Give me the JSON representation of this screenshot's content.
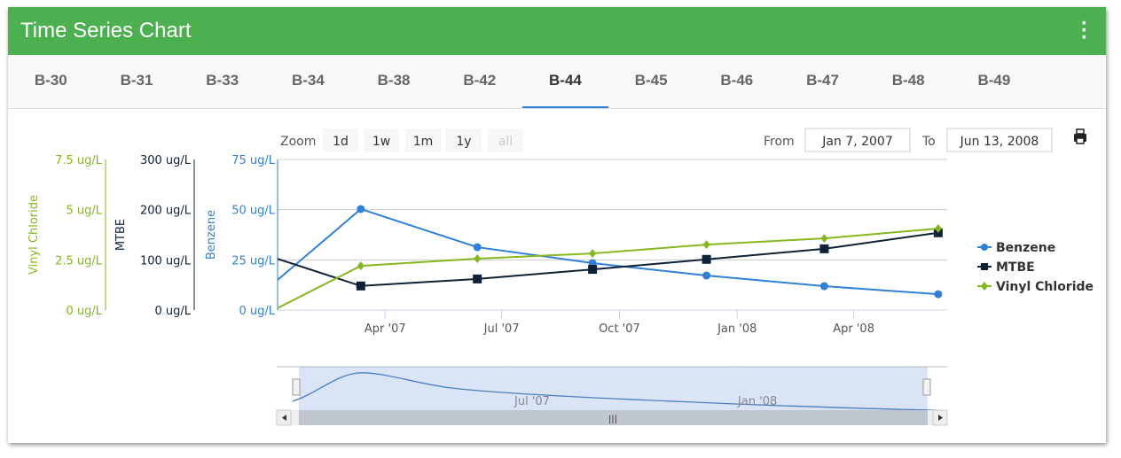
{
  "header": {
    "title": "Time Series Chart",
    "menu_icon": "kebab-icon"
  },
  "tabs": [
    "B-30",
    "B-31",
    "B-33",
    "B-34",
    "B-38",
    "B-42",
    "B-44",
    "B-45",
    "B-46",
    "B-47",
    "B-48",
    "B-49"
  ],
  "active_tab": "B-44",
  "toolbar": {
    "zoom_label": "Zoom",
    "zoom_buttons": [
      "1d",
      "1w",
      "1m",
      "1y",
      "all"
    ],
    "from_label": "From",
    "from_value": "Jan 7, 2007",
    "to_label": "To",
    "to_value": "Jun 13, 2008",
    "print_icon": "printer-icon"
  },
  "colors": {
    "benzene": "#2f80d9",
    "mtbe": "#0d2137",
    "vinyl": "#84b81c"
  },
  "chart_data": {
    "type": "line",
    "x_unit": "days since Jan 7, 2007",
    "xlim": [
      0,
      523
    ],
    "x_ticks": [
      {
        "label": "Apr '07",
        "day": 84
      },
      {
        "label": "Jul '07",
        "day": 175
      },
      {
        "label": "Oct '07",
        "day": 267
      },
      {
        "label": "Jan '08",
        "day": 359
      },
      {
        "label": "Apr '08",
        "day": 450
      }
    ],
    "x": [
      0,
      65,
      156,
      246,
      335,
      427,
      516
    ],
    "axes": [
      {
        "name": "Vinyl Chloride",
        "ylim": [
          0,
          7.5
        ],
        "ticks": [
          "0 ug/L",
          "2.5 ug/L",
          "5 ug/L",
          "7.5 ug/L"
        ]
      },
      {
        "name": "MTBE",
        "ylim": [
          0,
          300
        ],
        "ticks": [
          "0 ug/L",
          "100 ug/L",
          "200 ug/L",
          "300 ug/L"
        ]
      },
      {
        "name": "Benzene",
        "ylim": [
          0,
          75
        ],
        "ticks": [
          "0 ug/L",
          "25 ug/L",
          "50 ug/L",
          "75 ug/L"
        ]
      }
    ],
    "series": [
      {
        "name": "Benzene",
        "axis": 2,
        "marker": "circle",
        "values": [
          15,
          50.3,
          31.3,
          23.4,
          17.2,
          11.9,
          7.9
        ]
      },
      {
        "name": "MTBE",
        "axis": 1,
        "marker": "square",
        "values": [
          102,
          48,
          62,
          81,
          101,
          122,
          154
        ]
      },
      {
        "name": "Vinyl Chloride",
        "axis": 0,
        "marker": "diamond",
        "values": [
          0.1,
          2.2,
          2.56,
          2.82,
          3.26,
          3.57,
          4.06
        ]
      }
    ],
    "legend": "right",
    "navigator": {
      "x_ticks": [
        "Jul '07",
        "Jan '08"
      ]
    }
  }
}
